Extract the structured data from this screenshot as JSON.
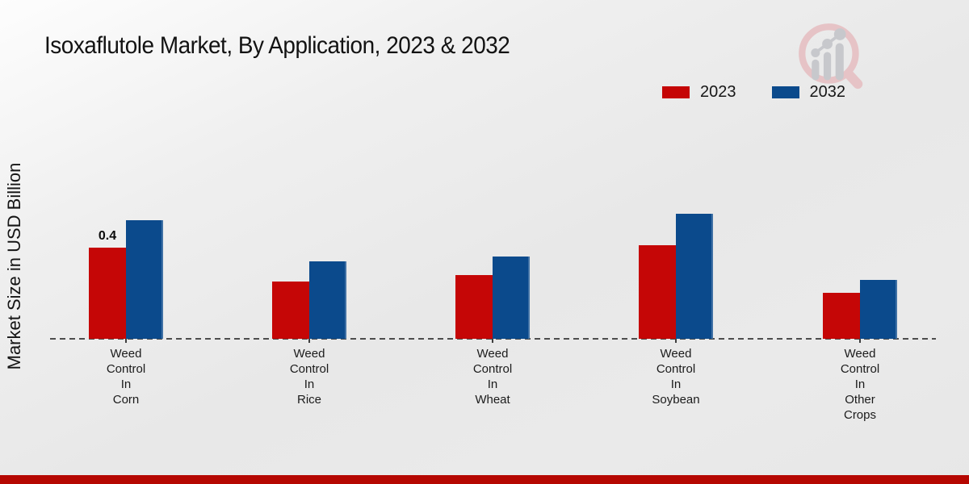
{
  "title": "Isoxaflutole Market, By Application, 2023 & 2032",
  "y_axis_label": "Market Size in USD Billion",
  "legend": {
    "items": [
      {
        "label": "2023",
        "color": "#c50606"
      },
      {
        "label": "2032",
        "color": "#0b4a8c"
      }
    ]
  },
  "logo": {
    "name": "market-research-magnifier-logo",
    "ring_color": "#e6c3c6",
    "bars_color": "#c7c8cc"
  },
  "colors": {
    "series_2023": "#c50606",
    "series_2032": "#0b4a8c",
    "footer_strip": "#b50701",
    "baseline_dash": "#4d4d4d"
  },
  "chart_data": {
    "type": "bar",
    "title": "Isoxaflutole Market, By Application, 2023 & 2032",
    "ylabel": "Market Size in USD Billion",
    "xlabel": "",
    "categories": [
      "Weed Control In Corn",
      "Weed Control In Rice",
      "Weed Control In Wheat",
      "Weed Control In Soybean",
      "Weed Control In Other Crops"
    ],
    "category_lines": [
      [
        "Weed",
        "Control",
        "In",
        "Corn"
      ],
      [
        "Weed",
        "Control",
        "In",
        "Rice"
      ],
      [
        "Weed",
        "Control",
        "In",
        "Wheat"
      ],
      [
        "Weed",
        "Control",
        "In",
        "Soybean"
      ],
      [
        "Weed",
        "Control",
        "In",
        "Other",
        "Crops"
      ]
    ],
    "series": [
      {
        "name": "2023",
        "color": "#c50606",
        "values": [
          0.4,
          0.25,
          0.28,
          0.41,
          0.2
        ]
      },
      {
        "name": "2032",
        "color": "#0b4a8c",
        "values": [
          0.52,
          0.34,
          0.36,
          0.55,
          0.26
        ]
      }
    ],
    "data_labels": [
      {
        "series": "2023",
        "category_index": 0,
        "text": "0.4"
      }
    ],
    "ylim": [
      0,
      0.7
    ],
    "grid": false,
    "baseline_style": "dashed",
    "legend_position": "top-right",
    "units": "USD Billion"
  }
}
